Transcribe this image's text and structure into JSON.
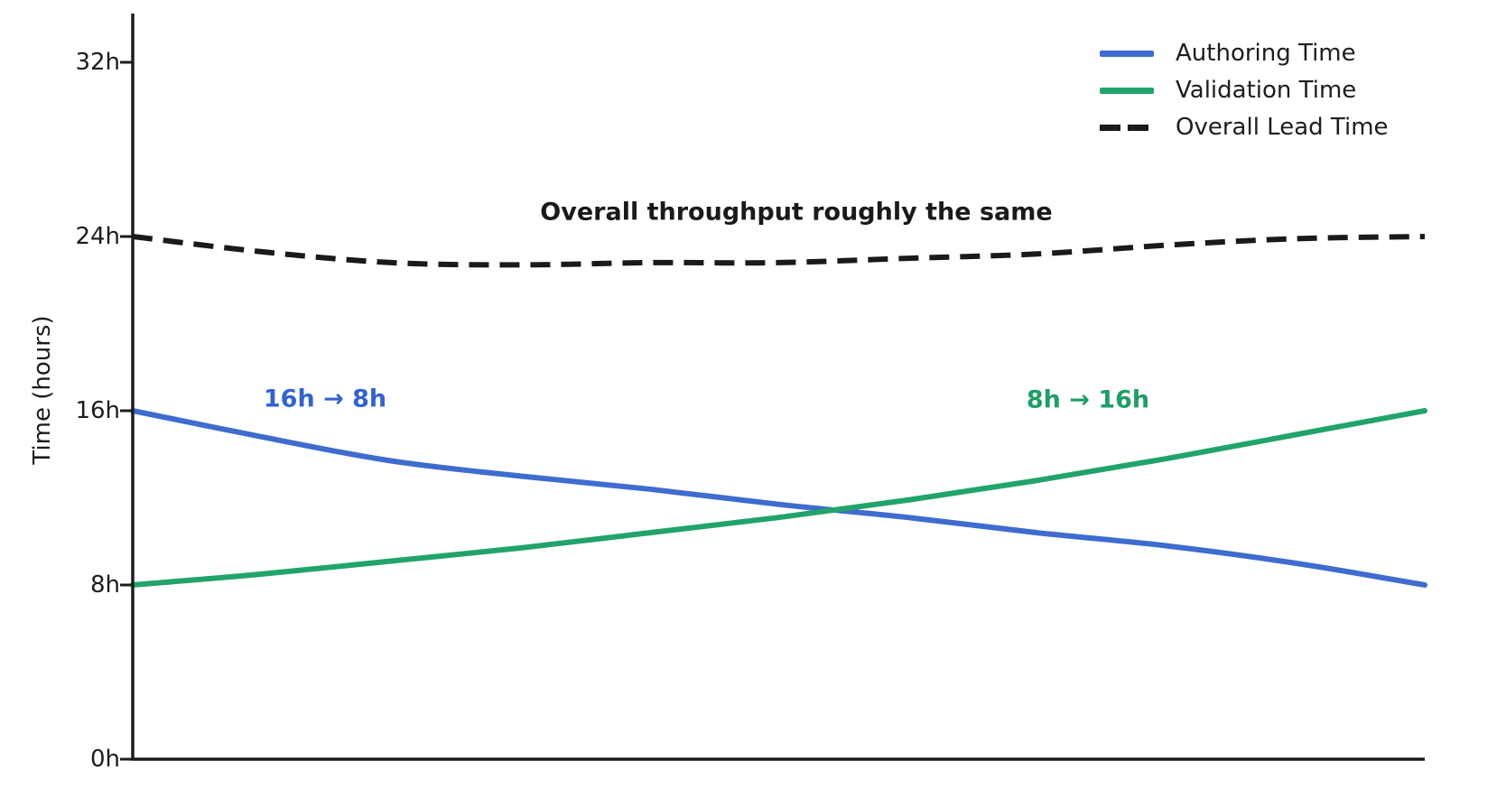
{
  "chart": {
    "y_axis": {
      "title": "Time (hours)",
      "tick_labels_top_to_bottom": [
        "32h",
        "24h",
        "16h",
        "8h",
        "0h"
      ]
    },
    "legend": {
      "items": [
        {
          "label": "Authoring Time",
          "color": "#3E6CCF",
          "style": "solid"
        },
        {
          "label": "Validation Time",
          "color": "#21A46C",
          "style": "solid"
        },
        {
          "label": "Overall Lead Time",
          "color": "#1A1A1A",
          "style": "dashed"
        }
      ]
    },
    "annotations": {
      "lead": {
        "text": "Overall throughput roughly the same",
        "color": "#1A1A1A"
      },
      "authoring": {
        "text": "16h → 8h",
        "color": "#3363CE"
      },
      "validation": {
        "text": "8h → 16h",
        "color": "#1E9E66"
      }
    }
  },
  "chart_data": {
    "type": "line",
    "title": "",
    "xlabel": "",
    "ylabel": "Time (hours)",
    "ylim": [
      0,
      34
    ],
    "yticks": [
      0,
      8,
      16,
      24,
      32
    ],
    "ytick_labels": [
      "0h",
      "8h",
      "16h",
      "24h",
      "32h"
    ],
    "xtick_labels": [],
    "grid": false,
    "legend_position": "top-right",
    "x": [
      0,
      0.1,
      0.2,
      0.3,
      0.4,
      0.5,
      0.6,
      0.7,
      0.8,
      0.9,
      1.0
    ],
    "series": [
      {
        "name": "Authoring Time",
        "color": "#3E6CCF",
        "style": "solid",
        "values": [
          16.0,
          14.8,
          13.7,
          13.0,
          12.4,
          11.7,
          11.1,
          10.4,
          9.8,
          9.0,
          8.0
        ]
      },
      {
        "name": "Validation Time",
        "color": "#21A46C",
        "style": "solid",
        "values": [
          8.0,
          8.5,
          9.1,
          9.7,
          10.4,
          11.1,
          11.9,
          12.8,
          13.8,
          14.9,
          16.0
        ]
      },
      {
        "name": "Overall Lead Time",
        "color": "#1A1A1A",
        "style": "dashed",
        "values": [
          24.0,
          23.3,
          22.8,
          22.7,
          22.8,
          22.8,
          23.0,
          23.2,
          23.6,
          23.9,
          24.0
        ]
      }
    ],
    "annotations": [
      {
        "text": "Overall throughput roughly the same",
        "color": "#1A1A1A",
        "x": 0.51,
        "y": 25.1
      },
      {
        "text": "16h → 8h",
        "color": "#3363CE",
        "x": 0.15,
        "y": 16.5
      },
      {
        "text": "8h → 16h",
        "color": "#1E9E66",
        "x": 0.74,
        "y": 16.5
      }
    ]
  }
}
